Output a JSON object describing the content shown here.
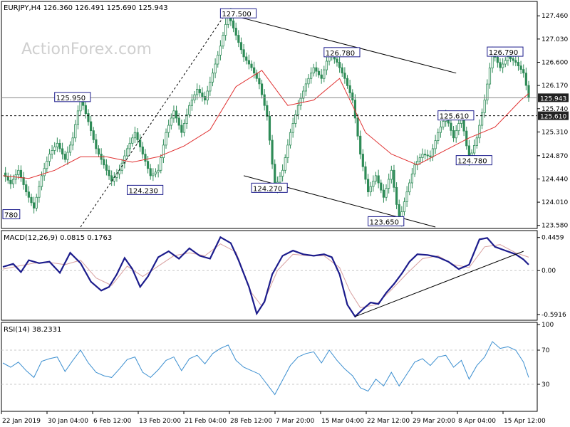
{
  "colors": {
    "candle": "#2e8b57",
    "ma": "#e03030",
    "macd": "#1c1c8c",
    "signal": "#d8a0a0",
    "rsi": "#3c8fd0",
    "price_box": "#1c1c8c",
    "last_box": "#222222",
    "grid": "#c8c8c8"
  },
  "watermark": "ActionForex.com",
  "chart_data": [
    {
      "type": "candlestick",
      "title": "EURJPY,H4 126.360 126.491 125.690 125.943",
      "y_ticks": [
        127.46,
        127.03,
        126.6,
        126.17,
        125.74,
        125.31,
        124.87,
        124.44,
        124.01,
        123.58
      ],
      "y_tick_labels": [
        "127.460",
        "127.030",
        "126.600",
        "126.170",
        "125.740",
        "125.310",
        "124.870",
        "124.440",
        "124.010",
        "123.580"
      ],
      "ylim": [
        123.55,
        127.7
      ],
      "x_tick_labels": [
        "22 Jan 2019",
        "30 Jan 04:00",
        "6 Feb 12:00",
        "13 Feb 20:00",
        "21 Feb 04:00",
        "28 Feb 12:00",
        "7 Mar 20:00",
        "15 Mar 04:00",
        "22 Mar 12:00",
        "29 Mar 20:00",
        "8 Apr 04:00",
        "15 Apr 12:00"
      ],
      "close_path": [
        [
          0,
          124.55
        ],
        [
          3,
          124.35
        ],
        [
          6,
          124.6
        ],
        [
          9,
          124.2
        ],
        [
          12,
          123.9
        ],
        [
          15,
          124.5
        ],
        [
          18,
          124.9
        ],
        [
          21,
          125.1
        ],
        [
          24,
          124.8
        ],
        [
          27,
          125.2
        ],
        [
          30,
          125.95
        ],
        [
          33,
          125.5
        ],
        [
          36,
          125.0
        ],
        [
          39,
          124.7
        ],
        [
          42,
          124.4
        ],
        [
          45,
          124.6
        ],
        [
          48,
          125.0
        ],
        [
          51,
          125.3
        ],
        [
          54,
          124.9
        ],
        [
          57,
          124.5
        ],
        [
          60,
          124.6
        ],
        [
          63,
          125.3
        ],
        [
          66,
          125.7
        ],
        [
          69,
          125.3
        ],
        [
          72,
          125.8
        ],
        [
          75,
          126.1
        ],
        [
          78,
          125.9
        ],
        [
          81,
          126.4
        ],
        [
          84,
          126.9
        ],
        [
          87,
          127.5
        ],
        [
          90,
          127.1
        ],
        [
          93,
          126.7
        ],
        [
          96,
          126.5
        ],
        [
          99,
          126.2
        ],
        [
          102,
          125.6
        ],
        [
          105,
          124.27
        ],
        [
          108,
          124.6
        ],
        [
          111,
          125.3
        ],
        [
          114,
          125.8
        ],
        [
          117,
          126.2
        ],
        [
          120,
          126.5
        ],
        [
          123,
          126.3
        ],
        [
          126,
          126.78
        ],
        [
          129,
          126.6
        ],
        [
          132,
          126.3
        ],
        [
          135,
          125.9
        ],
        [
          138,
          124.9
        ],
        [
          141,
          124.2
        ],
        [
          144,
          124.5
        ],
        [
          147,
          124.1
        ],
        [
          150,
          124.6
        ],
        [
          153,
          123.65
        ],
        [
          156,
          124.2
        ],
        [
          159,
          124.7
        ],
        [
          162,
          124.9
        ],
        [
          165,
          124.85
        ],
        [
          168,
          125.3
        ],
        [
          171,
          125.61
        ],
        [
          174,
          125.2
        ],
        [
          177,
          125.6
        ],
        [
          180,
          124.78
        ],
        [
          183,
          125.2
        ],
        [
          186,
          125.9
        ],
        [
          189,
          126.79
        ],
        [
          192,
          126.5
        ],
        [
          195,
          126.7
        ],
        [
          198,
          126.6
        ],
        [
          201,
          126.4
        ],
        [
          203,
          125.943
        ]
      ],
      "moving_average": [
        [
          0,
          124.5
        ],
        [
          10,
          124.45
        ],
        [
          20,
          124.6
        ],
        [
          30,
          124.85
        ],
        [
          40,
          124.85
        ],
        [
          50,
          124.75
        ],
        [
          60,
          124.85
        ],
        [
          70,
          125.05
        ],
        [
          80,
          125.35
        ],
        [
          90,
          126.15
        ],
        [
          100,
          126.45
        ],
        [
          110,
          125.8
        ],
        [
          120,
          125.9
        ],
        [
          130,
          126.3
        ],
        [
          140,
          125.3
        ],
        [
          150,
          124.9
        ],
        [
          160,
          124.7
        ],
        [
          170,
          124.95
        ],
        [
          180,
          125.2
        ],
        [
          190,
          125.4
        ],
        [
          200,
          125.9
        ],
        [
          203,
          126.02
        ]
      ],
      "price_labels": [
        {
          "text": "127.500",
          "bar": 84,
          "price": 127.5
        },
        {
          "text": "126.780",
          "bar": 124,
          "price": 126.78
        },
        {
          "text": "126.790",
          "bar": 187,
          "price": 126.79
        },
        {
          "text": "125.950",
          "bar": 20,
          "price": 125.95
        },
        {
          "text": "125.610",
          "bar": 168,
          "price": 125.61
        },
        {
          "text": "124.780",
          "bar": 175,
          "price": 124.78
        },
        {
          "text": "124.230",
          "bar": 48,
          "price": 124.23
        },
        {
          "text": "124.270",
          "bar": 96,
          "price": 124.27
        },
        {
          "text": "123.650",
          "bar": 141,
          "price": 123.65
        },
        {
          "text": "780",
          "bar": 0,
          "price": 123.78
        }
      ],
      "trendlines": [
        {
          "from": [
            86,
            127.5
          ],
          "to": [
            175,
            126.4
          ]
        },
        {
          "from": [
            93,
            124.5
          ],
          "to": [
            167,
            123.55
          ]
        },
        {
          "from": [
            30,
            123.55
          ],
          "to": [
            86,
            127.5
          ],
          "style": "dashed"
        }
      ],
      "horizontal_levels": [
        {
          "price": 125.943,
          "label": "125.943",
          "style": "solid"
        },
        {
          "price": 125.61,
          "label": "125.610",
          "style": "dashed"
        }
      ]
    },
    {
      "type": "line",
      "title": "MACD(12,26,9) 0.0815 0.1763",
      "y_ticks": [
        0.4459,
        0.0,
        -0.5916
      ],
      "y_tick_labels": [
        "0.4459",
        "0.00",
        "-0.5916"
      ],
      "ylim": [
        -0.66,
        0.52
      ],
      "macd": [
        [
          0,
          0.05
        ],
        [
          4,
          0.09
        ],
        [
          7,
          -0.02
        ],
        [
          10,
          0.14
        ],
        [
          14,
          0.1
        ],
        [
          18,
          0.12
        ],
        [
          22,
          -0.03
        ],
        [
          26,
          0.24
        ],
        [
          30,
          0.1
        ],
        [
          34,
          -0.15
        ],
        [
          38,
          -0.27
        ],
        [
          41,
          -0.22
        ],
        [
          44,
          -0.05
        ],
        [
          47,
          0.17
        ],
        [
          50,
          0.02
        ],
        [
          53,
          -0.22
        ],
        [
          56,
          -0.08
        ],
        [
          60,
          0.18
        ],
        [
          64,
          0.26
        ],
        [
          68,
          0.16
        ],
        [
          72,
          0.3
        ],
        [
          76,
          0.2
        ],
        [
          80,
          0.16
        ],
        [
          84,
          0.45
        ],
        [
          88,
          0.37
        ],
        [
          91,
          0.14
        ],
        [
          95,
          -0.22
        ],
        [
          98,
          -0.58
        ],
        [
          101,
          -0.42
        ],
        [
          104,
          -0.05
        ],
        [
          108,
          0.2
        ],
        [
          112,
          0.27
        ],
        [
          116,
          0.22
        ],
        [
          120,
          0.2
        ],
        [
          124,
          0.22
        ],
        [
          127,
          0.18
        ],
        [
          130,
          -0.05
        ],
        [
          133,
          -0.46
        ],
        [
          136,
          -0.62
        ],
        [
          139,
          -0.52
        ],
        [
          142,
          -0.43
        ],
        [
          145,
          -0.45
        ],
        [
          148,
          -0.3
        ],
        [
          151,
          -0.18
        ],
        [
          154,
          -0.04
        ],
        [
          157,
          0.12
        ],
        [
          160,
          0.22
        ],
        [
          164,
          0.21
        ],
        [
          168,
          0.18
        ],
        [
          172,
          0.12
        ],
        [
          176,
          0.02
        ],
        [
          180,
          0.08
        ],
        [
          184,
          0.42
        ],
        [
          187,
          0.44
        ],
        [
          190,
          0.32
        ],
        [
          194,
          0.27
        ],
        [
          198,
          0.22
        ],
        [
          201,
          0.15
        ],
        [
          203,
          0.08
        ]
      ],
      "signal": [
        [
          0,
          0.02
        ],
        [
          6,
          0.06
        ],
        [
          12,
          0.1
        ],
        [
          18,
          0.11
        ],
        [
          24,
          0.08
        ],
        [
          30,
          0.14
        ],
        [
          36,
          -0.1
        ],
        [
          42,
          -0.2
        ],
        [
          48,
          0.06
        ],
        [
          54,
          -0.08
        ],
        [
          60,
          0.06
        ],
        [
          66,
          0.2
        ],
        [
          72,
          0.24
        ],
        [
          78,
          0.2
        ],
        [
          84,
          0.36
        ],
        [
          90,
          0.25
        ],
        [
          96,
          -0.3
        ],
        [
          100,
          -0.48
        ],
        [
          106,
          0.0
        ],
        [
          112,
          0.22
        ],
        [
          118,
          0.2
        ],
        [
          124,
          0.2
        ],
        [
          130,
          0.04
        ],
        [
          134,
          -0.28
        ],
        [
          138,
          -0.5
        ],
        [
          144,
          -0.46
        ],
        [
          150,
          -0.26
        ],
        [
          156,
          -0.04
        ],
        [
          162,
          0.16
        ],
        [
          168,
          0.2
        ],
        [
          174,
          0.08
        ],
        [
          180,
          0.04
        ],
        [
          186,
          0.32
        ],
        [
          192,
          0.35
        ],
        [
          198,
          0.24
        ],
        [
          203,
          0.18
        ]
      ],
      "trendline": {
        "from": [
          136,
          -0.62
        ],
        "to": [
          201,
          0.26
        ]
      }
    },
    {
      "type": "line",
      "title": "RSI(14) 38.2331",
      "y_ticks": [
        100,
        70,
        30
      ],
      "y_tick_labels": [
        "100",
        "70",
        "30"
      ],
      "ylim": [
        0,
        100
      ],
      "levels": [
        70,
        30
      ],
      "values": [
        [
          0,
          55
        ],
        [
          3,
          50
        ],
        [
          6,
          56
        ],
        [
          9,
          46
        ],
        [
          12,
          38
        ],
        [
          15,
          57
        ],
        [
          18,
          60
        ],
        [
          21,
          62
        ],
        [
          24,
          45
        ],
        [
          27,
          58
        ],
        [
          30,
          70
        ],
        [
          33,
          55
        ],
        [
          36,
          44
        ],
        [
          39,
          40
        ],
        [
          42,
          38
        ],
        [
          45,
          48
        ],
        [
          48,
          59
        ],
        [
          51,
          62
        ],
        [
          54,
          44
        ],
        [
          57,
          38
        ],
        [
          60,
          47
        ],
        [
          63,
          58
        ],
        [
          66,
          62
        ],
        [
          69,
          46
        ],
        [
          72,
          60
        ],
        [
          75,
          64
        ],
        [
          78,
          54
        ],
        [
          81,
          66
        ],
        [
          84,
          72
        ],
        [
          87,
          76
        ],
        [
          90,
          58
        ],
        [
          93,
          50
        ],
        [
          96,
          46
        ],
        [
          99,
          42
        ],
        [
          102,
          30
        ],
        [
          105,
          18
        ],
        [
          108,
          35
        ],
        [
          111,
          52
        ],
        [
          114,
          62
        ],
        [
          117,
          66
        ],
        [
          120,
          68
        ],
        [
          123,
          55
        ],
        [
          126,
          70
        ],
        [
          129,
          58
        ],
        [
          132,
          48
        ],
        [
          135,
          40
        ],
        [
          138,
          26
        ],
        [
          141,
          22
        ],
        [
          144,
          36
        ],
        [
          147,
          28
        ],
        [
          150,
          44
        ],
        [
          153,
          28
        ],
        [
          156,
          42
        ],
        [
          159,
          56
        ],
        [
          162,
          60
        ],
        [
          165,
          52
        ],
        [
          168,
          62
        ],
        [
          171,
          64
        ],
        [
          174,
          50
        ],
        [
          177,
          58
        ],
        [
          180,
          36
        ],
        [
          183,
          52
        ],
        [
          186,
          62
        ],
        [
          189,
          80
        ],
        [
          192,
          72
        ],
        [
          195,
          74
        ],
        [
          198,
          70
        ],
        [
          201,
          56
        ],
        [
          203,
          38
        ]
      ]
    }
  ]
}
